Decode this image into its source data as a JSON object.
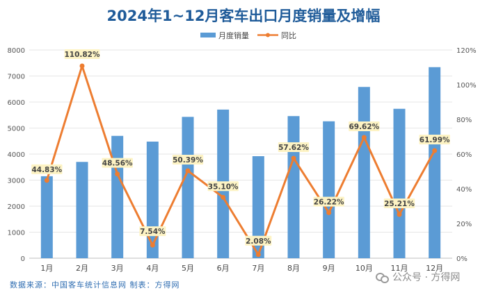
{
  "chart_data": {
    "type": "bar+line",
    "title": "2024年1~12月客车出口月度销量及增幅",
    "categories": [
      "1月",
      "2月",
      "3月",
      "4月",
      "5月",
      "6月",
      "7月",
      "8月",
      "9月",
      "10月",
      "11月",
      "12月"
    ],
    "series": [
      {
        "name": "月度销量",
        "type": "bar",
        "axis": "left",
        "values": [
          3150,
          3700,
          4700,
          4480,
          5430,
          5710,
          3920,
          5460,
          5260,
          6580,
          5740,
          7340
        ]
      },
      {
        "name": "同比",
        "type": "line",
        "axis": "right",
        "values": [
          44.83,
          110.82,
          48.56,
          7.54,
          50.39,
          35.1,
          2.08,
          57.62,
          26.22,
          69.62,
          25.21,
          61.99
        ],
        "labels": [
          "44.83%",
          "110.82%",
          "48.56%",
          "7.54%",
          "50.39%",
          "35.10%",
          "2.08%",
          "57.62%",
          "26.22%",
          "69.62%",
          "25.21%",
          "61.99%"
        ]
      }
    ],
    "left_axis": {
      "min": 0,
      "max": 8000,
      "step": 1000,
      "ticks": [
        "0",
        "1000",
        "2000",
        "3000",
        "4000",
        "5000",
        "6000",
        "7000",
        "8000"
      ]
    },
    "right_axis": {
      "min": 0,
      "max": 120,
      "step": 20,
      "ticks": [
        "0%",
        "20%",
        "40%",
        "60%",
        "80%",
        "100%",
        "120%"
      ]
    },
    "legend_position": "top-center",
    "colors": {
      "bar": "#5b9bd5",
      "line": "#ed7d31",
      "title": "#1f5b99",
      "label_bg": "#fdf3c4"
    }
  },
  "footer": {
    "source": "数据来源：中国客车统计信息网 制表：方得网",
    "watermark": "公众号 · 方得网"
  }
}
